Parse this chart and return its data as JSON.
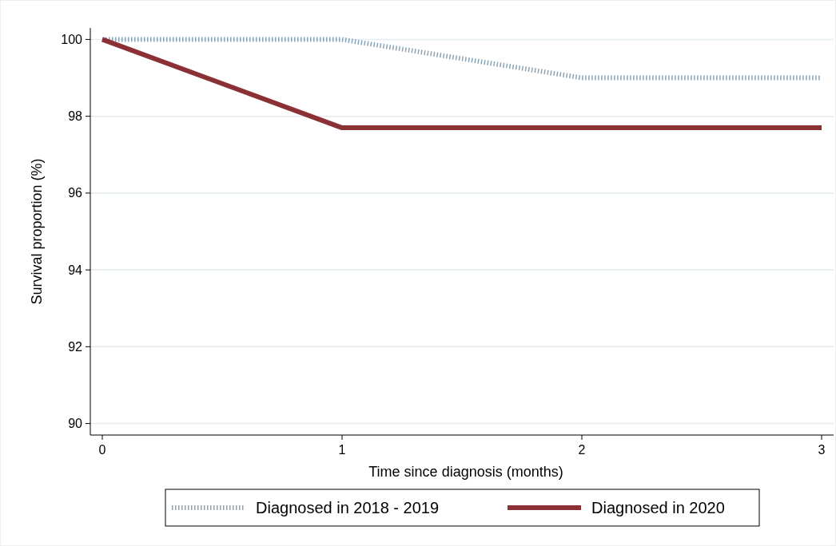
{
  "chart_data": {
    "type": "line",
    "xlabel": "Time since diagnosis (months)",
    "ylabel": "Survival proportion (%)",
    "x": [
      0,
      1,
      2,
      3
    ],
    "series": [
      {
        "name": "Diagnosed in 2018 - 2019",
        "color": "#8aa3b5",
        "values": [
          100,
          100,
          99,
          99
        ],
        "line_style": "dotted"
      },
      {
        "name": "Diagnosed in 2020",
        "color": "#8b3035",
        "values": [
          100,
          97.7,
          97.7,
          97.7
        ],
        "line_style": "solid"
      }
    ],
    "xlim": [
      -0.05,
      3.05
    ],
    "ylim": [
      89.7,
      100.3
    ],
    "xticks": [
      0,
      1,
      2,
      3
    ],
    "yticks": [
      90,
      92,
      94,
      96,
      98,
      100
    ],
    "grid": "y",
    "legend": "bottom",
    "marker": "none"
  }
}
